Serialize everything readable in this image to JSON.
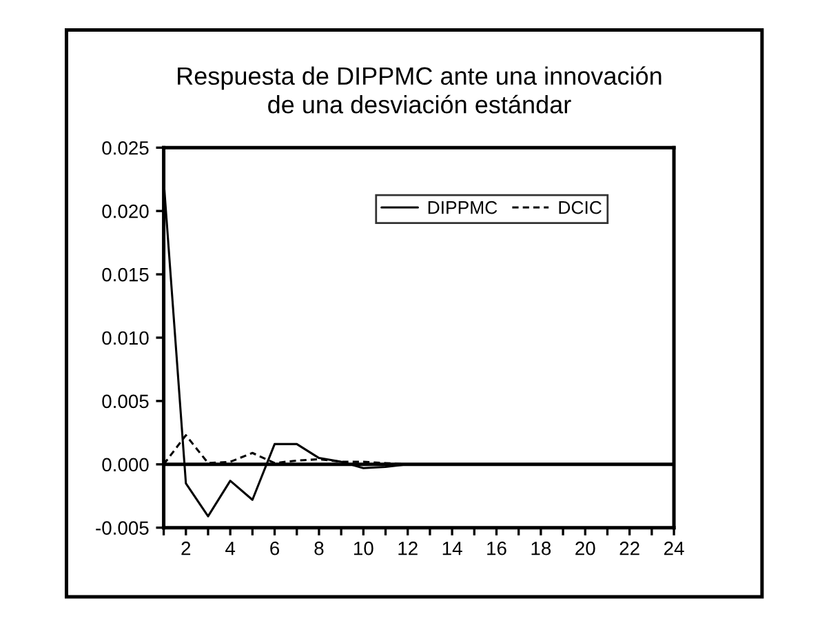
{
  "chart_data": {
    "type": "line",
    "title": "Respuesta de DIPPMC ante una innovación\nde una desviación estándar",
    "x": [
      1,
      2,
      3,
      4,
      5,
      6,
      7,
      8,
      9,
      10,
      11,
      12,
      13,
      14,
      15,
      16,
      17,
      18,
      19,
      20,
      21,
      22,
      23,
      24
    ],
    "series": [
      {
        "name": "DIPPMC",
        "color": "#000000",
        "line_style": "solid",
        "values": [
          0.0224,
          -0.0015,
          -0.0041,
          -0.0013,
          -0.0028,
          0.0016,
          0.0016,
          0.0005,
          0.0002,
          -0.0003,
          -0.0002,
          0,
          0,
          0,
          0,
          0,
          0,
          0,
          0,
          0,
          0,
          0,
          0,
          0
        ]
      },
      {
        "name": "DCIC",
        "color": "#000000",
        "line_style": "dashed",
        "values": [
          0,
          0.0023,
          0.0001,
          0.0002,
          0.0009,
          0.0001,
          0.0003,
          0.0004,
          0.0002,
          0.0002,
          0.0001,
          0,
          0,
          0,
          0,
          0,
          0,
          0,
          0,
          0,
          0,
          0,
          0,
          0
        ]
      }
    ],
    "xlim": [
      1,
      24
    ],
    "xticks": [
      {
        "value": 1,
        "label": null
      },
      2,
      {
        "value": 3,
        "label": null
      },
      4,
      {
        "value": 5,
        "label": null
      },
      6,
      {
        "value": 7,
        "label": null
      },
      8,
      {
        "value": 9,
        "label": null
      },
      10,
      {
        "value": 11,
        "label": null
      },
      12,
      {
        "value": 13,
        "label": null
      },
      14,
      {
        "value": 15,
        "label": null
      },
      16,
      {
        "value": 17,
        "label": null
      },
      18,
      {
        "value": 19,
        "label": null
      },
      20,
      {
        "value": 21,
        "label": null
      },
      22,
      {
        "value": 23,
        "label": null
      },
      24
    ],
    "ylim": [
      -0.005,
      0.025
    ],
    "yticks": [
      {
        "value": -0.005,
        "label": "-0.005"
      },
      {
        "value": 0,
        "label": "0.000"
      },
      {
        "value": 0.005,
        "label": "0.005"
      },
      {
        "value": 0.01,
        "label": "0.010"
      },
      {
        "value": 0.015,
        "label": "0.015"
      },
      {
        "value": 0.02,
        "label": "0.020"
      },
      {
        "value": 0.025,
        "label": "0.025"
      }
    ],
    "ref_lines": [
      {
        "axis": "y",
        "value": 0,
        "color": "#000000",
        "line_style": "solid"
      }
    ],
    "legend": "top right",
    "grid": false,
    "marker": "none"
  }
}
